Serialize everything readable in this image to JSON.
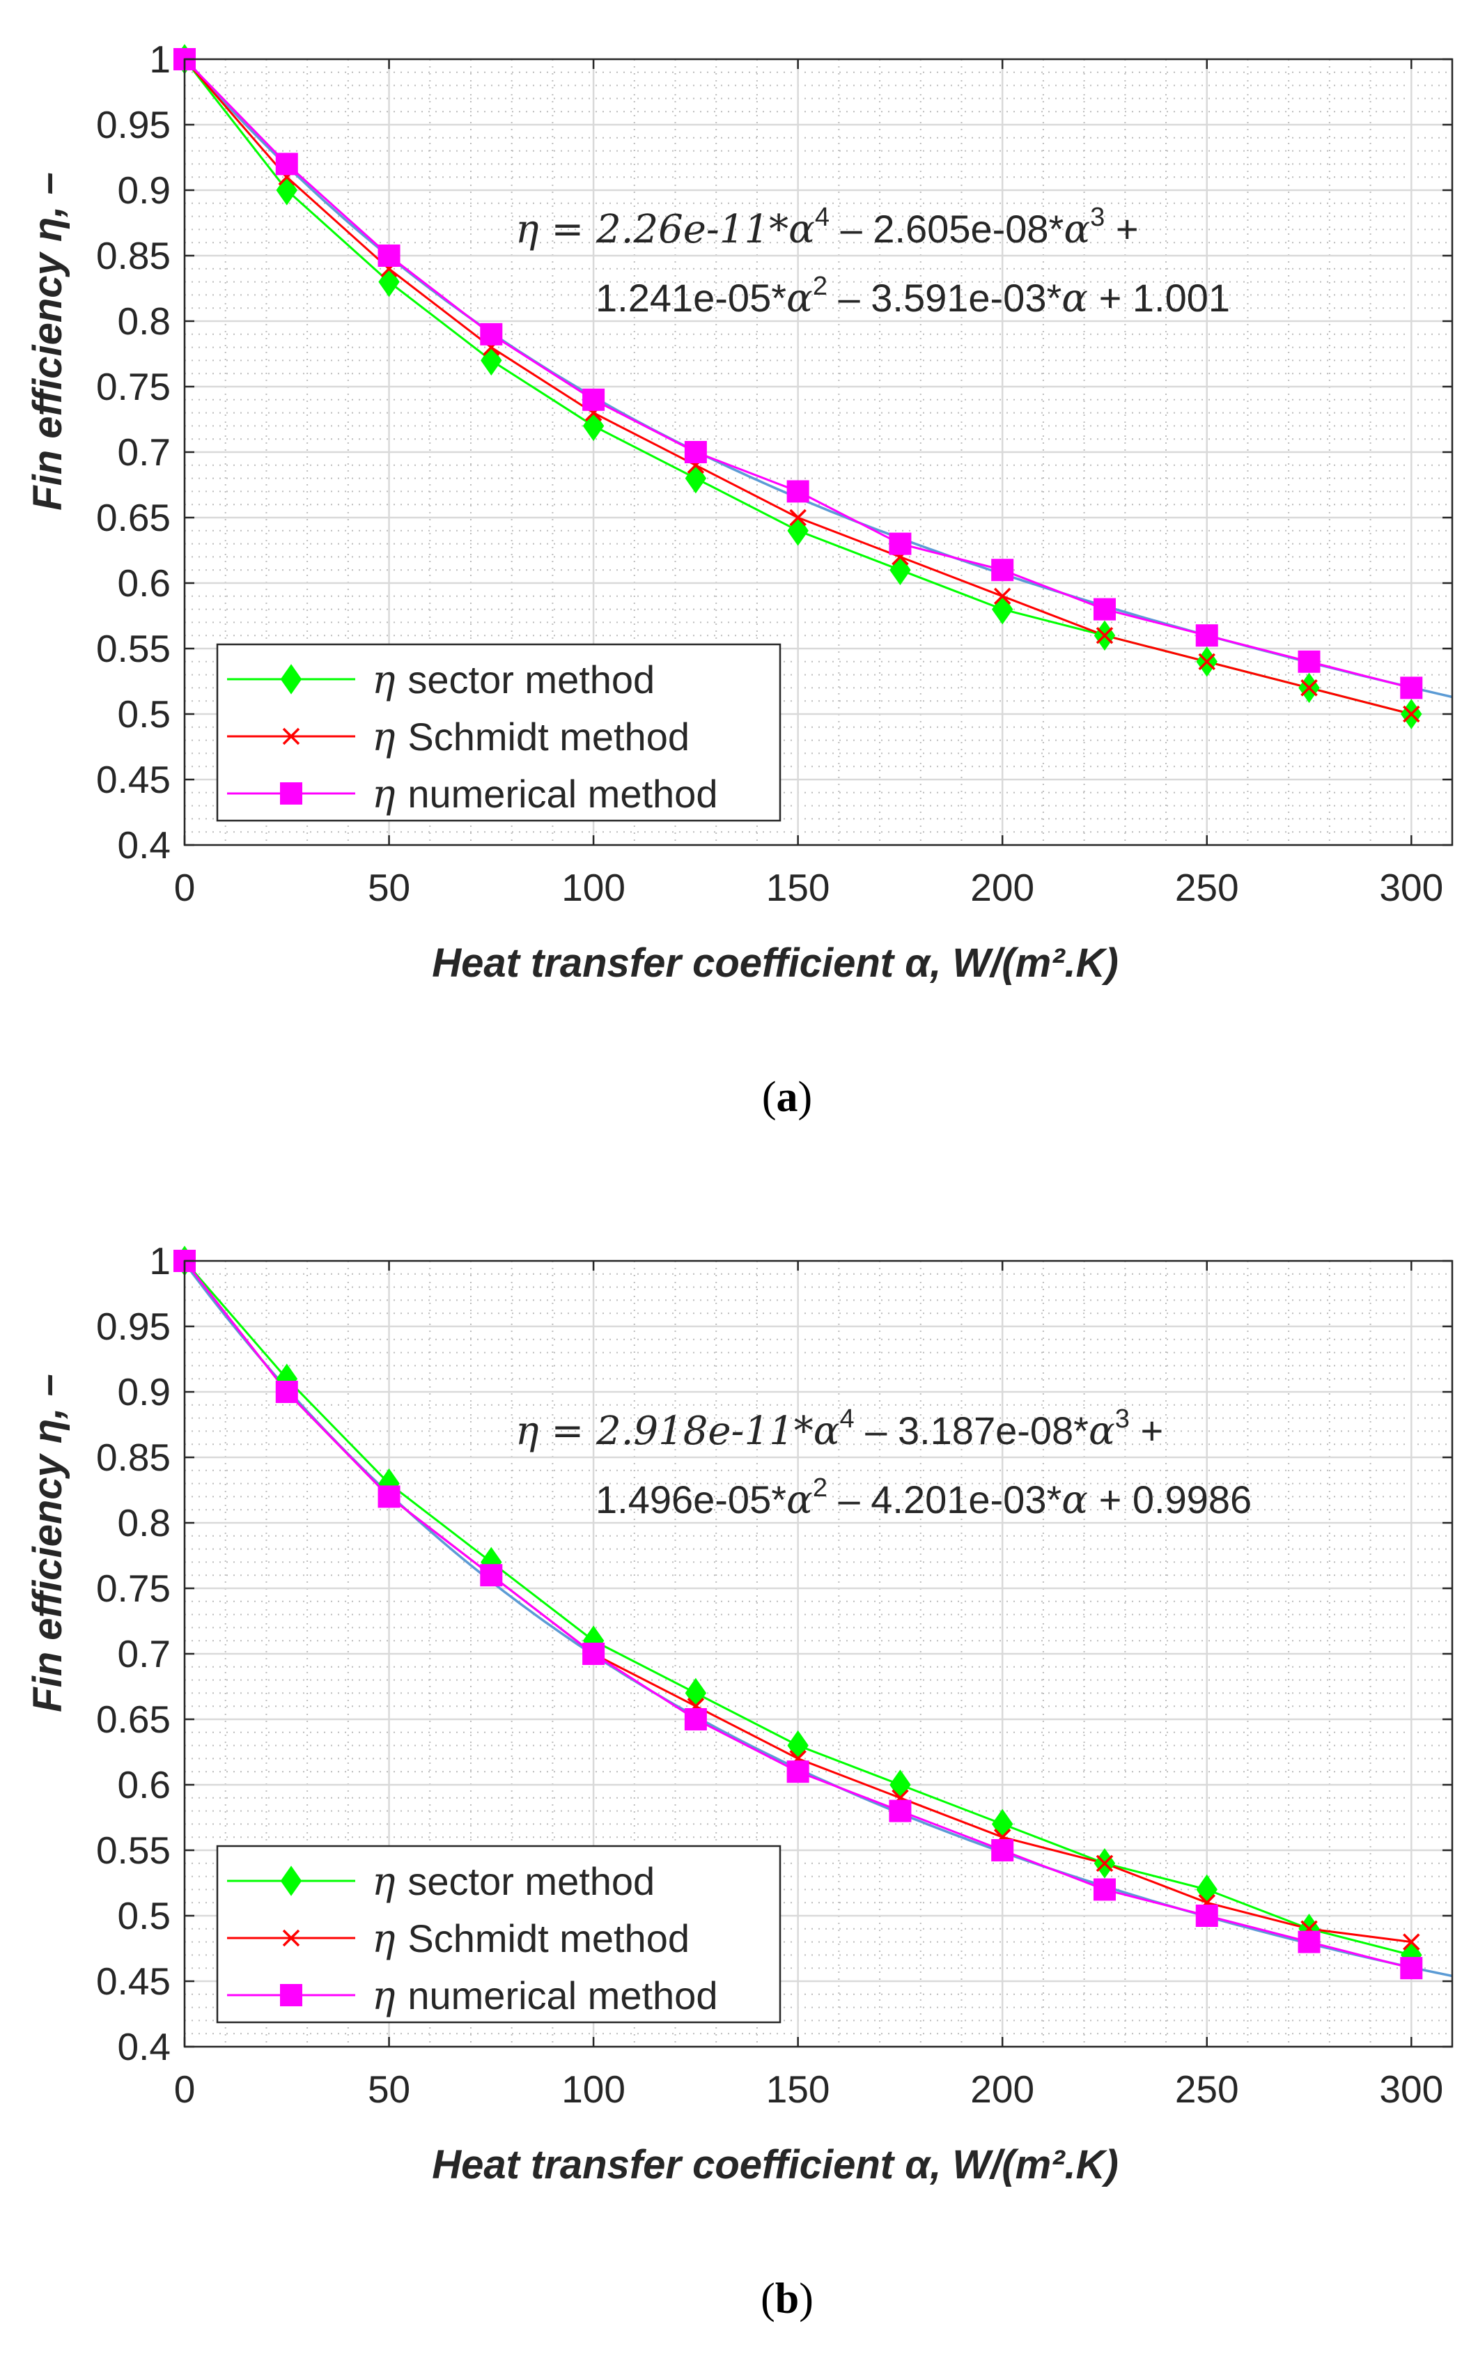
{
  "chart_data": [
    {
      "type": "line",
      "panel_label": "a",
      "xlabel": "Heat transfer coefficient α, W/(m².K)",
      "ylabel": "Fin efficiency η, –",
      "xlim": [
        0,
        310
      ],
      "ylim": [
        0.4,
        1.0
      ],
      "xticks": [
        0,
        50,
        100,
        150,
        200,
        250,
        300
      ],
      "xtick_labels": [
        "0",
        "50",
        "100",
        "150",
        "200",
        "250",
        "300"
      ],
      "yticks": [
        0.4,
        0.45,
        0.5,
        0.55,
        0.6,
        0.65,
        0.7,
        0.75,
        0.8,
        0.85,
        0.9,
        0.95,
        1.0
      ],
      "ytick_labels": [
        "0.4",
        "0.45",
        "0.5",
        "0.55",
        "0.6",
        "0.65",
        "0.7",
        "0.75",
        "0.8",
        "0.85",
        "0.9",
        "0.95",
        "1"
      ],
      "grid": true,
      "legend_position": "bottom-left",
      "x": [
        0,
        25,
        50,
        75,
        100,
        125,
        150,
        175,
        200,
        225,
        250,
        275,
        300
      ],
      "series": [
        {
          "name": "sector method",
          "label_prefix": "η",
          "color": "#00ff00",
          "marker": "diamond",
          "values": [
            1.0,
            0.9,
            0.83,
            0.77,
            0.72,
            0.68,
            0.64,
            0.61,
            0.58,
            0.56,
            0.54,
            0.52,
            0.5
          ]
        },
        {
          "name": "Schmidt method",
          "label_prefix": "η",
          "color": "#ff0000",
          "marker": "x",
          "values": [
            1.0,
            0.91,
            0.84,
            0.78,
            0.73,
            0.69,
            0.65,
            0.62,
            0.59,
            0.56,
            0.54,
            0.52,
            0.5
          ]
        },
        {
          "name": "numerical method",
          "label_prefix": "η",
          "color": "#ff00ff",
          "marker": "square",
          "values": [
            1.0,
            0.92,
            0.85,
            0.79,
            0.74,
            0.7,
            0.67,
            0.63,
            0.61,
            0.58,
            0.56,
            0.54,
            0.52
          ]
        }
      ],
      "fit": {
        "color": "#5b9bd5",
        "coefficients": [
          2.26e-11,
          -2.605e-08,
          1.241e-05,
          -0.003591,
          1.001
        ],
        "equation_line1": {
          "lead": "η = 2.26e-11*",
          "v1": "α",
          "p1": "4",
          "mid": " – 2.605e-08*",
          "v2": "α",
          "p2": "3",
          "tail": " +"
        },
        "equation_line2": {
          "lead": "1.241e-05*",
          "v1": "α",
          "p1": "2",
          "mid": " – 3.591e-03*",
          "v2": "α",
          "tail": " + 1.001"
        }
      }
    },
    {
      "type": "line",
      "panel_label": "b",
      "xlabel": "Heat transfer coefficient α, W/(m².K)",
      "ylabel": "Fin efficiency η, –",
      "xlim": [
        0,
        310
      ],
      "ylim": [
        0.4,
        1.0
      ],
      "xticks": [
        0,
        50,
        100,
        150,
        200,
        250,
        300
      ],
      "xtick_labels": [
        "0",
        "50",
        "100",
        "150",
        "200",
        "250",
        "300"
      ],
      "yticks": [
        0.4,
        0.45,
        0.5,
        0.55,
        0.6,
        0.65,
        0.7,
        0.75,
        0.8,
        0.85,
        0.9,
        0.95,
        1.0
      ],
      "ytick_labels": [
        "0.4",
        "0.45",
        "0.5",
        "0.55",
        "0.6",
        "0.65",
        "0.7",
        "0.75",
        "0.8",
        "0.85",
        "0.9",
        "0.95",
        "1"
      ],
      "grid": true,
      "legend_position": "bottom-left",
      "x": [
        0,
        25,
        50,
        75,
        100,
        125,
        150,
        175,
        200,
        225,
        250,
        275,
        300
      ],
      "series": [
        {
          "name": "sector method",
          "label_prefix": "η",
          "color": "#00ff00",
          "marker": "diamond",
          "values": [
            1.0,
            0.91,
            0.83,
            0.77,
            0.71,
            0.67,
            0.63,
            0.6,
            0.57,
            0.54,
            0.52,
            0.49,
            0.47
          ]
        },
        {
          "name": "Schmidt method",
          "label_prefix": "η",
          "color": "#ff0000",
          "marker": "x",
          "values": [
            1.0,
            0.9,
            0.82,
            0.76,
            0.7,
            0.66,
            0.62,
            0.59,
            0.56,
            0.54,
            0.51,
            0.49,
            0.48
          ]
        },
        {
          "name": "numerical method",
          "label_prefix": "η",
          "color": "#ff00ff",
          "marker": "square",
          "values": [
            1.0,
            0.9,
            0.82,
            0.76,
            0.7,
            0.65,
            0.61,
            0.58,
            0.55,
            0.52,
            0.5,
            0.48,
            0.46
          ]
        }
      ],
      "fit": {
        "color": "#5b9bd5",
        "coefficients": [
          2.918e-11,
          -3.187e-08,
          1.496e-05,
          -0.004201,
          0.9986
        ],
        "equation_line1": {
          "lead": "η = 2.918e-11*",
          "v1": "α",
          "p1": "4",
          "mid": " – 3.187e-08*",
          "v2": "α",
          "p2": "3",
          "tail": " +"
        },
        "equation_line2": {
          "lead": "1.496e-05*",
          "v1": "α",
          "p1": "2",
          "mid": " – 4.201e-03*",
          "v2": "α",
          "tail": " + 0.9986"
        }
      }
    }
  ]
}
